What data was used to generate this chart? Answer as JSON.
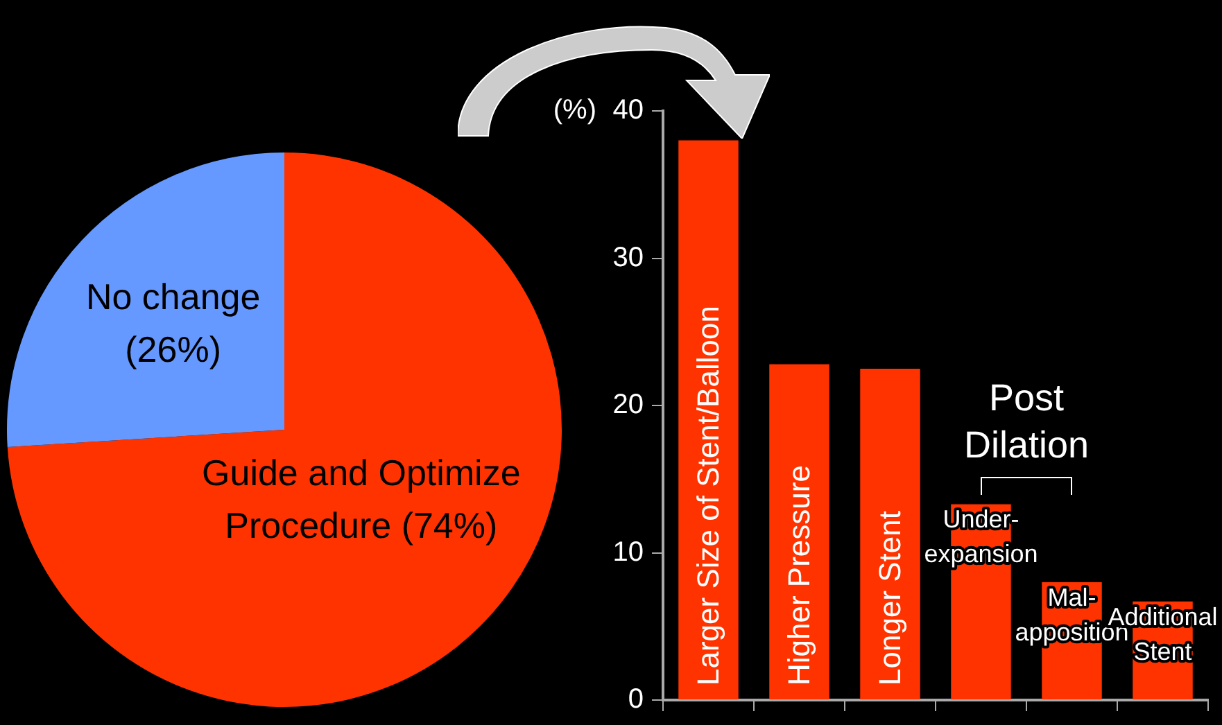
{
  "chart_data": [
    {
      "type": "pie",
      "categories": [
        "Guide and Optimize Procedure",
        "No change"
      ],
      "values": [
        74,
        26
      ],
      "colors": [
        "#ff3300",
        "#6699ff"
      ],
      "value_labels": [
        "(74%)",
        "(26%)"
      ],
      "legend": false
    },
    {
      "type": "bar",
      "categories": [
        "Larger Size of Stent/Balloon",
        "Higher Pressure",
        "Longer Stent",
        "Under-\nexpansion",
        "Mal-\napposition",
        "Additional\nStent"
      ],
      "values": [
        38,
        22.8,
        22.5,
        13.3,
        8,
        6.7
      ],
      "color": "#ff3300",
      "ylabel": "(%)",
      "ylim": [
        0,
        40
      ],
      "yticks": [
        0,
        10,
        20,
        30,
        40
      ],
      "grid": false,
      "legend": false,
      "annotations": [
        "Post Dilation"
      ]
    }
  ]
}
